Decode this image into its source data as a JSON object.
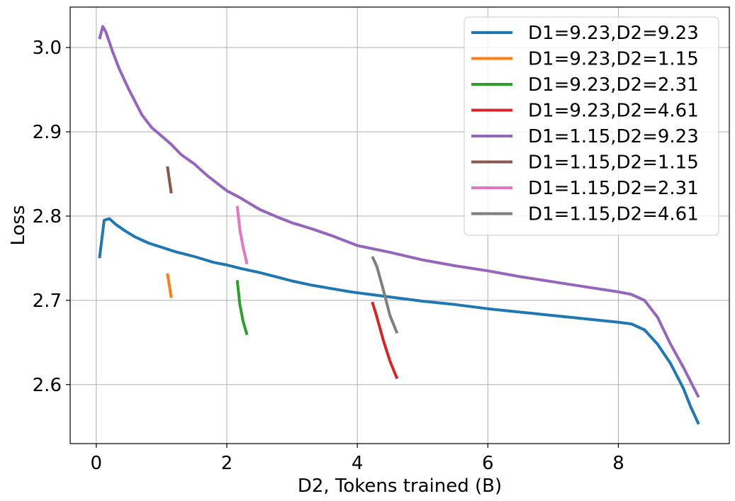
{
  "chart_data": {
    "type": "line",
    "title": "",
    "xlabel": "D2, Tokens trained (B)",
    "ylabel": "Loss",
    "xlim": [
      -0.4,
      9.7
    ],
    "ylim": [
      2.53,
      3.048
    ],
    "x_ticks": [
      0,
      2,
      4,
      6,
      8
    ],
    "x_tick_labels": [
      "0",
      "2",
      "4",
      "6",
      "8"
    ],
    "y_ticks": [
      2.6,
      2.7,
      2.8,
      2.9,
      3.0
    ],
    "y_tick_labels": [
      "2.6",
      "2.7",
      "2.8",
      "2.9",
      "3.0"
    ],
    "grid": true,
    "legend_position": "top-right",
    "series": [
      {
        "name": "D1=9.23,D2=9.23",
        "color": "#1f77b4",
        "x": [
          0.05,
          0.12,
          0.2,
          0.3,
          0.45,
          0.6,
          0.8,
          1.0,
          1.2,
          1.5,
          1.8,
          2.0,
          2.2,
          2.5,
          2.8,
          3.0,
          3.3,
          3.6,
          3.9,
          4.2,
          4.5,
          5.0,
          5.5,
          6.0,
          6.5,
          7.0,
          7.5,
          8.0,
          8.2,
          8.4,
          8.6,
          8.8,
          9.0,
          9.1,
          9.23
        ],
        "y": [
          2.75,
          2.795,
          2.797,
          2.79,
          2.782,
          2.775,
          2.768,
          2.763,
          2.758,
          2.752,
          2.745,
          2.742,
          2.738,
          2.733,
          2.727,
          2.723,
          2.718,
          2.714,
          2.71,
          2.707,
          2.704,
          2.699,
          2.695,
          2.69,
          2.686,
          2.682,
          2.678,
          2.674,
          2.672,
          2.665,
          2.648,
          2.625,
          2.595,
          2.575,
          2.553
        ]
      },
      {
        "name": "D1=9.23,D2=1.15",
        "color": "#ff7f0e",
        "x": [
          1.09,
          1.15
        ],
        "y": [
          2.732,
          2.703
        ]
      },
      {
        "name": "D1=9.23,D2=2.31",
        "color": "#2ca02c",
        "x": [
          2.16,
          2.2,
          2.25,
          2.31
        ],
        "y": [
          2.724,
          2.695,
          2.675,
          2.659
        ]
      },
      {
        "name": "D1=9.23,D2=4.61",
        "color": "#d62728",
        "x": [
          4.23,
          4.3,
          4.4,
          4.5,
          4.61
        ],
        "y": [
          2.698,
          2.68,
          2.652,
          2.628,
          2.607
        ]
      },
      {
        "name": "D1=1.15,D2=9.23",
        "color": "#9467bd",
        "x": [
          0.05,
          0.1,
          0.15,
          0.25,
          0.35,
          0.5,
          0.7,
          0.85,
          1.0,
          1.15,
          1.3,
          1.5,
          1.7,
          2.0,
          2.2,
          2.5,
          2.8,
          3.0,
          3.3,
          3.6,
          4.0,
          4.5,
          5.0,
          5.5,
          6.0,
          6.5,
          7.0,
          7.5,
          8.0,
          8.2,
          8.4,
          8.6,
          8.8,
          9.0,
          9.23
        ],
        "y": [
          3.01,
          3.025,
          3.018,
          2.995,
          2.975,
          2.95,
          2.92,
          2.905,
          2.895,
          2.885,
          2.873,
          2.862,
          2.848,
          2.83,
          2.822,
          2.808,
          2.798,
          2.792,
          2.785,
          2.777,
          2.765,
          2.757,
          2.748,
          2.741,
          2.735,
          2.728,
          2.722,
          2.716,
          2.71,
          2.707,
          2.7,
          2.68,
          2.648,
          2.62,
          2.585
        ]
      },
      {
        "name": "D1=1.15,D2=1.15",
        "color": "#8c564b",
        "x": [
          1.09,
          1.15
        ],
        "y": [
          2.859,
          2.827
        ]
      },
      {
        "name": "D1=1.15,D2=2.31",
        "color": "#e377c2",
        "x": [
          2.16,
          2.2,
          2.25,
          2.31
        ],
        "y": [
          2.812,
          2.784,
          2.763,
          2.743
        ]
      },
      {
        "name": "D1=1.15,D2=4.61",
        "color": "#7f7f7f",
        "x": [
          4.23,
          4.3,
          4.4,
          4.5,
          4.61
        ],
        "y": [
          2.752,
          2.74,
          2.712,
          2.682,
          2.661
        ]
      }
    ]
  }
}
